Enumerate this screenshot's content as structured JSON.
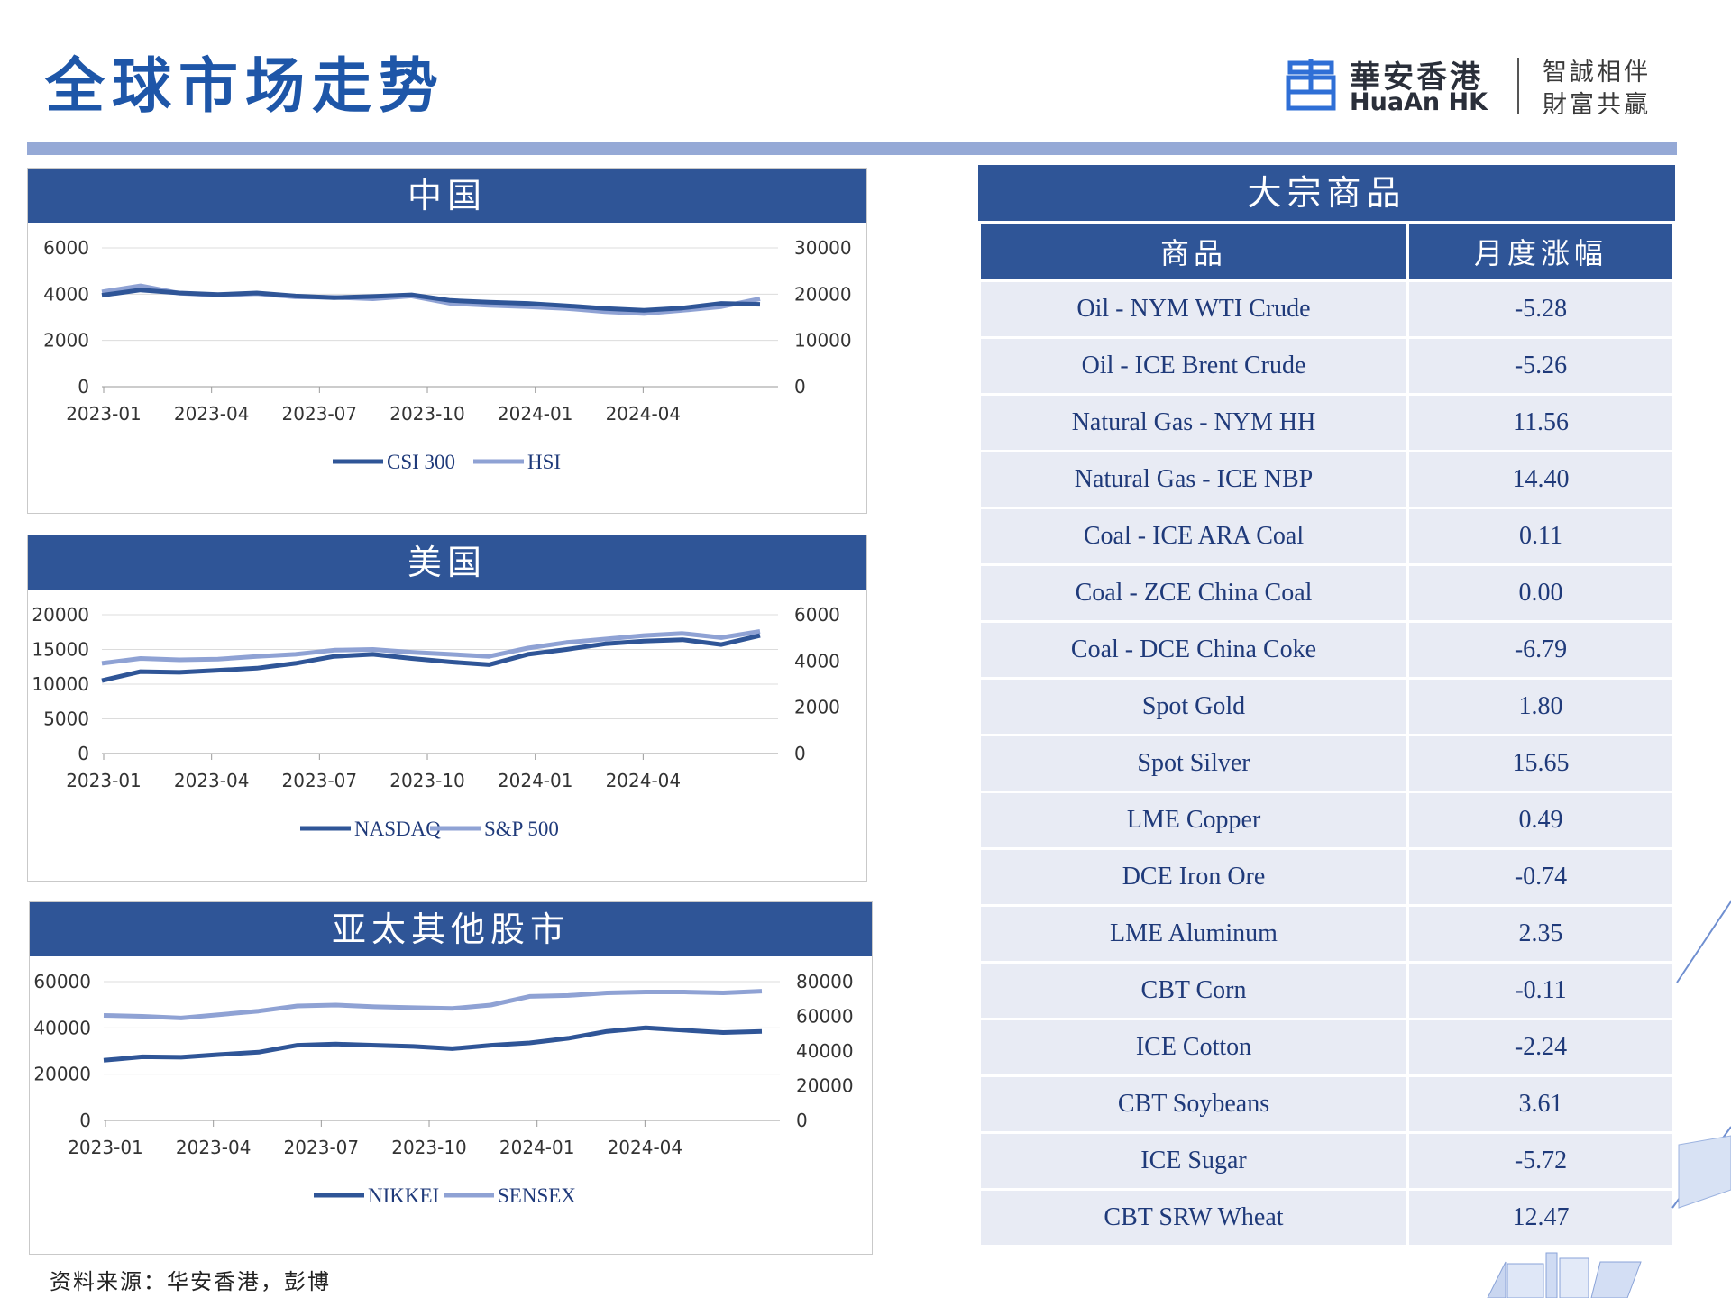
{
  "header": {
    "title": "全球市场走势",
    "logo_cn": "華安香港",
    "logo_en": "HuaAn HK",
    "slogan_line1": "智誠相伴",
    "slogan_line2": "財富共贏"
  },
  "colors": {
    "brand_blue": "#2f5597",
    "series_dark": "#2f5597",
    "series_light": "#8fa2d4",
    "row_bg": "#e8ebf4"
  },
  "chart_data": [
    {
      "type": "line",
      "title": "中国",
      "x_ticks": [
        "2023-01",
        "2023-04",
        "2023-07",
        "2023-10",
        "2024-01",
        "2024-04"
      ],
      "y_left": {
        "ticks": [
          0,
          2000,
          4000,
          6000
        ],
        "lim": [
          0,
          6000
        ]
      },
      "y_right": {
        "ticks": [
          0,
          10000,
          20000,
          30000
        ],
        "lim": [
          0,
          30000
        ]
      },
      "series": [
        {
          "name": "CSI 300",
          "axis": "left",
          "color": "#2f5597",
          "x": [
            0,
            1,
            2,
            3,
            4,
            5,
            6,
            7,
            8,
            9,
            10,
            11,
            12,
            13,
            14,
            15,
            16,
            17
          ],
          "values": [
            3950,
            4180,
            4050,
            3980,
            4050,
            3920,
            3850,
            3900,
            3970,
            3730,
            3650,
            3600,
            3500,
            3380,
            3300,
            3400,
            3600,
            3560
          ]
        },
        {
          "name": "HSI",
          "axis": "right",
          "color": "#8fa2d4",
          "x": [
            0,
            1,
            2,
            3,
            4,
            5,
            6,
            7,
            8,
            9,
            10,
            11,
            12,
            13,
            14,
            15,
            16,
            17
          ],
          "values": [
            20500,
            21800,
            20200,
            19800,
            20100,
            19400,
            19300,
            19000,
            19600,
            18000,
            17600,
            17300,
            16900,
            16200,
            15800,
            16500,
            17300,
            19000
          ]
        }
      ]
    },
    {
      "type": "line",
      "title": "美国",
      "x_ticks": [
        "2023-01",
        "2023-04",
        "2023-07",
        "2023-10",
        "2024-01",
        "2024-04"
      ],
      "y_left": {
        "ticks": [
          0,
          5000,
          10000,
          15000,
          20000
        ],
        "lim": [
          0,
          20000
        ]
      },
      "y_right": {
        "ticks": [
          0,
          2000,
          4000,
          6000
        ],
        "lim": [
          0,
          6000
        ]
      },
      "series": [
        {
          "name": "NASDAQ",
          "axis": "left",
          "color": "#2f5597",
          "x": [
            0,
            1,
            2,
            3,
            4,
            5,
            6,
            7,
            8,
            9,
            10,
            11,
            12,
            13,
            14,
            15,
            16,
            17
          ],
          "values": [
            10500,
            11800,
            11700,
            12000,
            12300,
            13000,
            14000,
            14300,
            13700,
            13200,
            12800,
            14300,
            15000,
            15800,
            16200,
            16400,
            15700,
            17000
          ]
        },
        {
          "name": "S&P 500",
          "axis": "left",
          "color": "#8fa2d4",
          "x": [
            0,
            1,
            2,
            3,
            4,
            5,
            6,
            7,
            8,
            9,
            10,
            11,
            12,
            13,
            14,
            15,
            16,
            17
          ],
          "values": [
            13000,
            13700,
            13500,
            13600,
            14000,
            14300,
            14900,
            15000,
            14600,
            14300,
            14000,
            15200,
            16000,
            16500,
            17000,
            17300,
            16700,
            17600
          ]
        }
      ]
    },
    {
      "type": "line",
      "title": "亚太其他股市",
      "x_ticks": [
        "2023-01",
        "2023-04",
        "2023-07",
        "2023-10",
        "2024-01",
        "2024-04"
      ],
      "y_left": {
        "ticks": [
          0,
          20000,
          40000,
          60000
        ],
        "lim": [
          0,
          60000
        ]
      },
      "y_right": {
        "ticks": [
          0,
          20000,
          40000,
          60000,
          80000
        ],
        "lim": [
          0,
          80000
        ]
      },
      "series": [
        {
          "name": "NIKKEI",
          "axis": "left",
          "color": "#2f5597",
          "x": [
            0,
            1,
            2,
            3,
            4,
            5,
            6,
            7,
            8,
            9,
            10,
            11,
            12,
            13,
            14,
            15,
            16,
            17
          ],
          "values": [
            26000,
            27500,
            27300,
            28500,
            29500,
            32500,
            33000,
            32500,
            32000,
            31000,
            32500,
            33500,
            35500,
            38500,
            40000,
            39000,
            38000,
            38500
          ]
        },
        {
          "name": "SENSEX",
          "axis": "right",
          "color": "#8fa2d4",
          "x": [
            0,
            1,
            2,
            3,
            4,
            5,
            6,
            7,
            8,
            9,
            10,
            11,
            12,
            13,
            14,
            15,
            16,
            17
          ],
          "values": [
            60500,
            60000,
            59000,
            61000,
            63000,
            66000,
            66500,
            65500,
            65000,
            64500,
            66500,
            71500,
            72000,
            73500,
            74000,
            74000,
            73500,
            74500
          ]
        }
      ]
    }
  ],
  "commodities": {
    "title": "大宗商品",
    "col_name": "商品",
    "col_change": "月度涨幅",
    "rows": [
      {
        "name": "Oil - NYM WTI Crude",
        "change": "-5.28"
      },
      {
        "name": "Oil - ICE Brent Crude",
        "change": "-5.26"
      },
      {
        "name": "Natural Gas - NYM HH",
        "change": "11.56"
      },
      {
        "name": "Natural Gas - ICE NBP",
        "change": "14.40"
      },
      {
        "name": "Coal - ICE ARA Coal",
        "change": "0.11"
      },
      {
        "name": "Coal - ZCE China Coal",
        "change": "0.00"
      },
      {
        "name": "Coal - DCE China Coke",
        "change": "-6.79"
      },
      {
        "name": "Spot Gold",
        "change": "1.80"
      },
      {
        "name": "Spot Silver",
        "change": "15.65"
      },
      {
        "name": "LME Copper",
        "change": "0.49"
      },
      {
        "name": "DCE Iron Ore",
        "change": "-0.74"
      },
      {
        "name": "LME Aluminum",
        "change": "2.35"
      },
      {
        "name": "CBT Corn",
        "change": "-0.11"
      },
      {
        "name": "ICE Cotton",
        "change": "-2.24"
      },
      {
        "name": "CBT Soybeans",
        "change": "3.61"
      },
      {
        "name": "ICE Sugar",
        "change": "-5.72"
      },
      {
        "name": "CBT SRW Wheat",
        "change": "12.47"
      }
    ]
  },
  "footer": {
    "source": "资料来源：华安香港，彭博"
  }
}
